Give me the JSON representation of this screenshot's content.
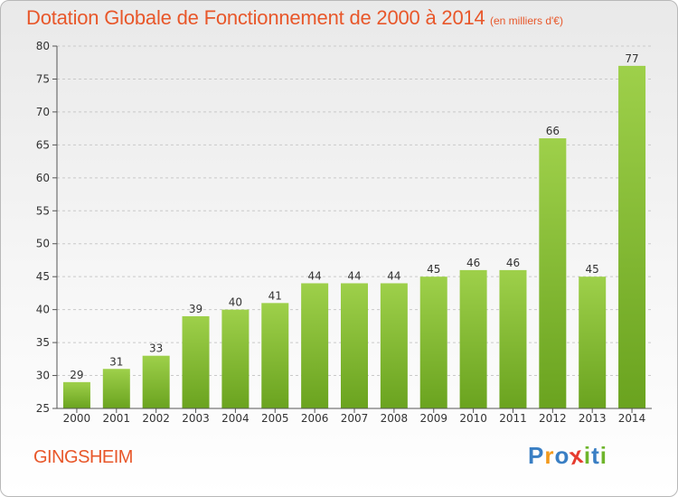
{
  "chart_data": {
    "type": "bar",
    "title": "Dotation Globale de Fonctionnement de 2000 à 2014",
    "unit": "(en milliers d'€)",
    "categories": [
      "2000",
      "2001",
      "2002",
      "2003",
      "2004",
      "2005",
      "2006",
      "2007",
      "2008",
      "2009",
      "2010",
      "2011",
      "2012",
      "2013",
      "2014"
    ],
    "values": [
      29,
      31,
      33,
      39,
      40,
      41,
      44,
      44,
      44,
      45,
      46,
      46,
      66,
      45,
      77
    ],
    "ylim": [
      25,
      80
    ],
    "yticks": [
      25,
      30,
      35,
      40,
      45,
      50,
      55,
      60,
      65,
      70,
      75,
      80
    ],
    "grid": true,
    "bar_color_top": "#9ed04a",
    "bar_color_bottom": "#6aa31f"
  },
  "town": "GINGSHEIM",
  "logo": {
    "letters": [
      "P",
      "r",
      "o",
      "x",
      "i",
      "t",
      "i"
    ],
    "colors": [
      "#3a7fc4",
      "#f29a1d",
      "#3a7fc4",
      "#e63b2e",
      "#6fb52c",
      "#3a7fc4",
      "#6fb52c"
    ]
  }
}
